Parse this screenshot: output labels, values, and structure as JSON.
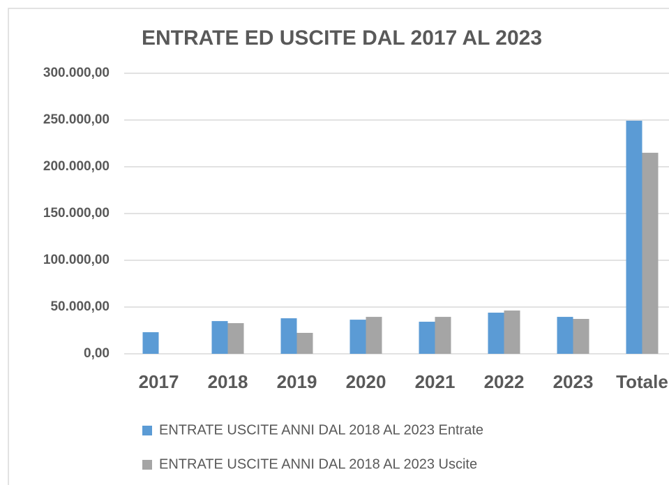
{
  "chart_data": {
    "type": "bar",
    "title": "ENTRATE ED USCITE DAL 2017 AL 2023",
    "categories": [
      "2017",
      "2018",
      "2019",
      "2020",
      "2021",
      "2022",
      "2023",
      "Totale"
    ],
    "series": [
      {
        "name": "ENTRATE USCITE ANNI DAL 2018 AL 2023 Entrate",
        "color": "#5b9bd5",
        "values": [
          23100,
          35000,
          38000,
          36500,
          34300,
          44000,
          39500,
          249300
        ]
      },
      {
        "name": "ENTRATE USCITE ANNI DAL 2018 AL 2023 Uscite",
        "color": "#a5a5a5",
        "values": [
          null,
          32800,
          22400,
          39500,
          39500,
          46300,
          37300,
          215000
        ]
      }
    ],
    "ylim": [
      0,
      300000
    ],
    "yticks": [
      {
        "value": 0,
        "label": "0,00"
      },
      {
        "value": 50000,
        "label": "50.000,00"
      },
      {
        "value": 100000,
        "label": "100.000,00"
      },
      {
        "value": 150000,
        "label": "150.000,00"
      },
      {
        "value": 200000,
        "label": "200.000,00"
      },
      {
        "value": 250000,
        "label": "250.000,00"
      },
      {
        "value": 300000,
        "label": "300.000,00"
      }
    ],
    "grid": true,
    "legend": "bottom"
  }
}
